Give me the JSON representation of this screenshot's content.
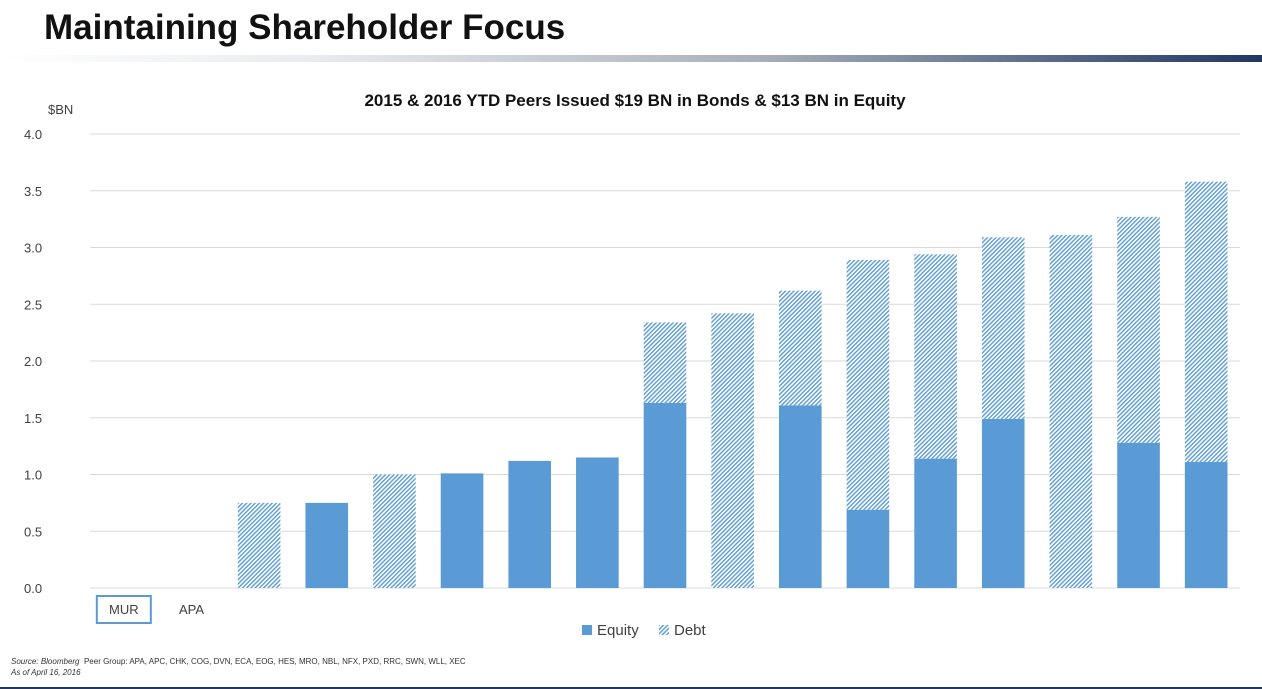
{
  "page": {
    "title": "Maintaining Shareholder Focus",
    "source_label": "Source:",
    "source_name": "Bloomberg",
    "peer_group": "Peer Group: APA, APC, CHK, COG, DVN, ECA, EOG, HES, MRO, NBL, NFX, PXD, RRC, SWN, WLL, XEC",
    "as_of": "As of April 16, 2016"
  },
  "colors": {
    "equity": "#5b9bd5",
    "debt": "#5b9bd5",
    "grid": "#d9d9d9",
    "highlight_box": "#5b9bd5"
  },
  "chart_data": {
    "type": "bar",
    "stacked": true,
    "title": "2015 & 2016 YTD Peers Issued $19 BN in Bonds & $13 BN in Equity",
    "ylabel": "$BN",
    "ylim": [
      0,
      4
    ],
    "yticks": [
      "0.0",
      "0.5",
      "1.0",
      "1.5",
      "2.0",
      "2.5",
      "3.0",
      "3.5",
      "4.0"
    ],
    "grid": true,
    "legend_position": "bottom",
    "categories": [
      "MUR",
      "APA",
      "",
      "",
      "",
      "",
      "",
      "",
      "",
      "",
      "",
      "",
      "",
      "",
      "",
      "",
      ""
    ],
    "highlighted_category": "MUR",
    "series": [
      {
        "name": "Equity",
        "pattern": "solid",
        "values": [
          0,
          0,
          0,
          0.75,
          0,
          1.01,
          1.12,
          1.15,
          1.63,
          0,
          1.61,
          0.69,
          1.14,
          1.49,
          0,
          1.28,
          1.11
        ]
      },
      {
        "name": "Debt",
        "pattern": "hatched",
        "values": [
          0,
          0,
          0.75,
          0,
          1.0,
          0,
          0,
          0,
          0.71,
          2.42,
          1.01,
          2.2,
          1.8,
          1.6,
          3.11,
          1.99,
          2.47
        ]
      }
    ]
  }
}
